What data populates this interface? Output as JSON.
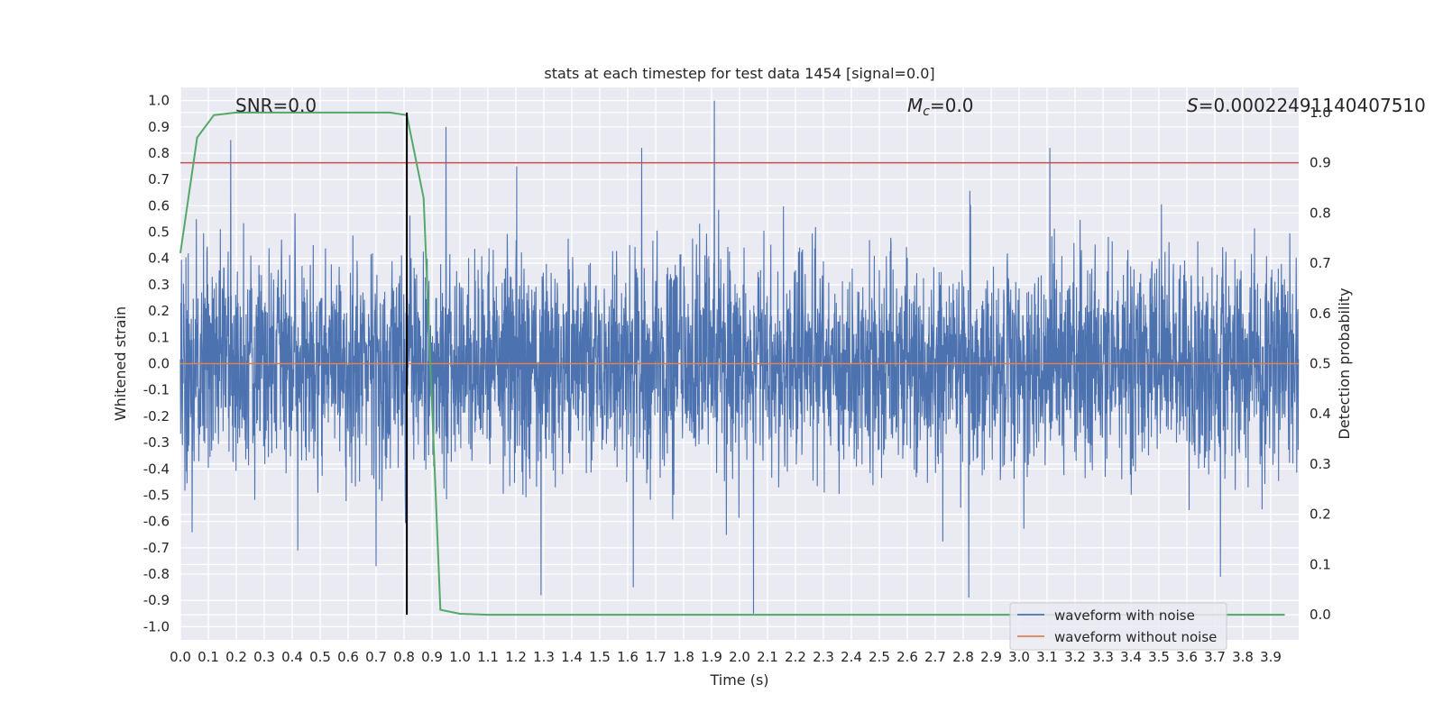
{
  "chart_data": {
    "type": "line",
    "title": "stats at each timestep for test data 1454 [signal=0.0]",
    "xlabel": "Time (s)",
    "ylabel": "Whitened strain",
    "ylabel_right": "Detection probability",
    "xlim": [
      0.0,
      4.0
    ],
    "ylim": [
      -1.05,
      1.05
    ],
    "ylim_right": [
      -0.05,
      1.05
    ],
    "x_ticks": [
      "0.0",
      "0.1",
      "0.2",
      "0.3",
      "0.4",
      "0.5",
      "0.6",
      "0.7",
      "0.8",
      "0.9",
      "1.0",
      "1.1",
      "1.2",
      "1.3",
      "1.4",
      "1.5",
      "1.6",
      "1.7",
      "1.8",
      "1.9",
      "2.0",
      "2.1",
      "2.2",
      "2.3",
      "2.4",
      "2.5",
      "2.6",
      "2.7",
      "2.8",
      "2.9",
      "3.0",
      "3.1",
      "3.2",
      "3.3",
      "3.4",
      "3.5",
      "3.6",
      "3.7",
      "3.8",
      "3.9"
    ],
    "y_ticks": [
      "1.0",
      "0.9",
      "0.8",
      "0.7",
      "0.6",
      "0.5",
      "0.4",
      "0.3",
      "0.2",
      "0.1",
      "0.0",
      "-0.1",
      "-0.2",
      "-0.3",
      "-0.4",
      "-0.5",
      "-0.6",
      "-0.7",
      "-0.8",
      "-0.9",
      "-1.0"
    ],
    "y_ticks_right": [
      "1.0",
      "0.9",
      "0.8",
      "0.7",
      "0.6",
      "0.5",
      "0.4",
      "0.3",
      "0.2",
      "0.1",
      "0.0"
    ],
    "grid": true,
    "legend_placement": "lower-right",
    "annotations": {
      "snr": "SNR=0.0",
      "mc_symbol": "M",
      "mc_sub": "c",
      "mc_value": "=0.0",
      "s_symbol": "S",
      "s_value": "=0.00022491140407510"
    },
    "threshold_right": 0.9,
    "vertical_marker_x": 0.81,
    "colors": {
      "noise": "#4c72b0",
      "clean": "#dd8452",
      "probability": "#55a868",
      "threshold": "#c44e52",
      "marker": "#000000",
      "plot_bg": "#eaeaf2",
      "grid": "#ffffff"
    },
    "series": [
      {
        "name": "waveform with noise",
        "axis": "left",
        "description_values": "dense noise, amplitude mostly within about ±0.45, peaks near 1.0 at t≈1.91 and near -0.95 at t≈2.05",
        "peaks": [
          {
            "x": 0.18,
            "y": 0.85
          },
          {
            "x": 0.95,
            "y": 0.9
          },
          {
            "x": 1.91,
            "y": 1.0
          },
          {
            "x": 1.65,
            "y": 0.82
          },
          {
            "x": 3.11,
            "y": 0.82
          },
          {
            "x": 2.05,
            "y": -0.95
          },
          {
            "x": 2.82,
            "y": -0.89
          },
          {
            "x": 1.29,
            "y": -0.88
          },
          {
            "x": 1.62,
            "y": -0.85
          },
          {
            "x": 3.72,
            "y": -0.81
          },
          {
            "x": 0.7,
            "y": -0.77
          },
          {
            "x": 0.42,
            "y": -0.71
          }
        ]
      },
      {
        "name": "waveform without noise",
        "axis": "left",
        "x": [
          0.0,
          4.0
        ],
        "y": [
          0.0,
          0.0
        ]
      },
      {
        "name": "",
        "axis": "right",
        "x": [
          0.0,
          0.06,
          0.12,
          0.2,
          0.3,
          0.4,
          0.5,
          0.6,
          0.75,
          0.81,
          0.87,
          0.93,
          1.0,
          1.1,
          1.5,
          2.0,
          3.0,
          3.95
        ],
        "y": [
          0.72,
          0.95,
          0.995,
          1.0,
          1.0,
          1.0,
          1.0,
          1.0,
          1.0,
          0.995,
          0.83,
          0.01,
          0.002,
          0.0,
          0.0,
          0.0,
          0.0,
          0.0
        ]
      }
    ]
  }
}
